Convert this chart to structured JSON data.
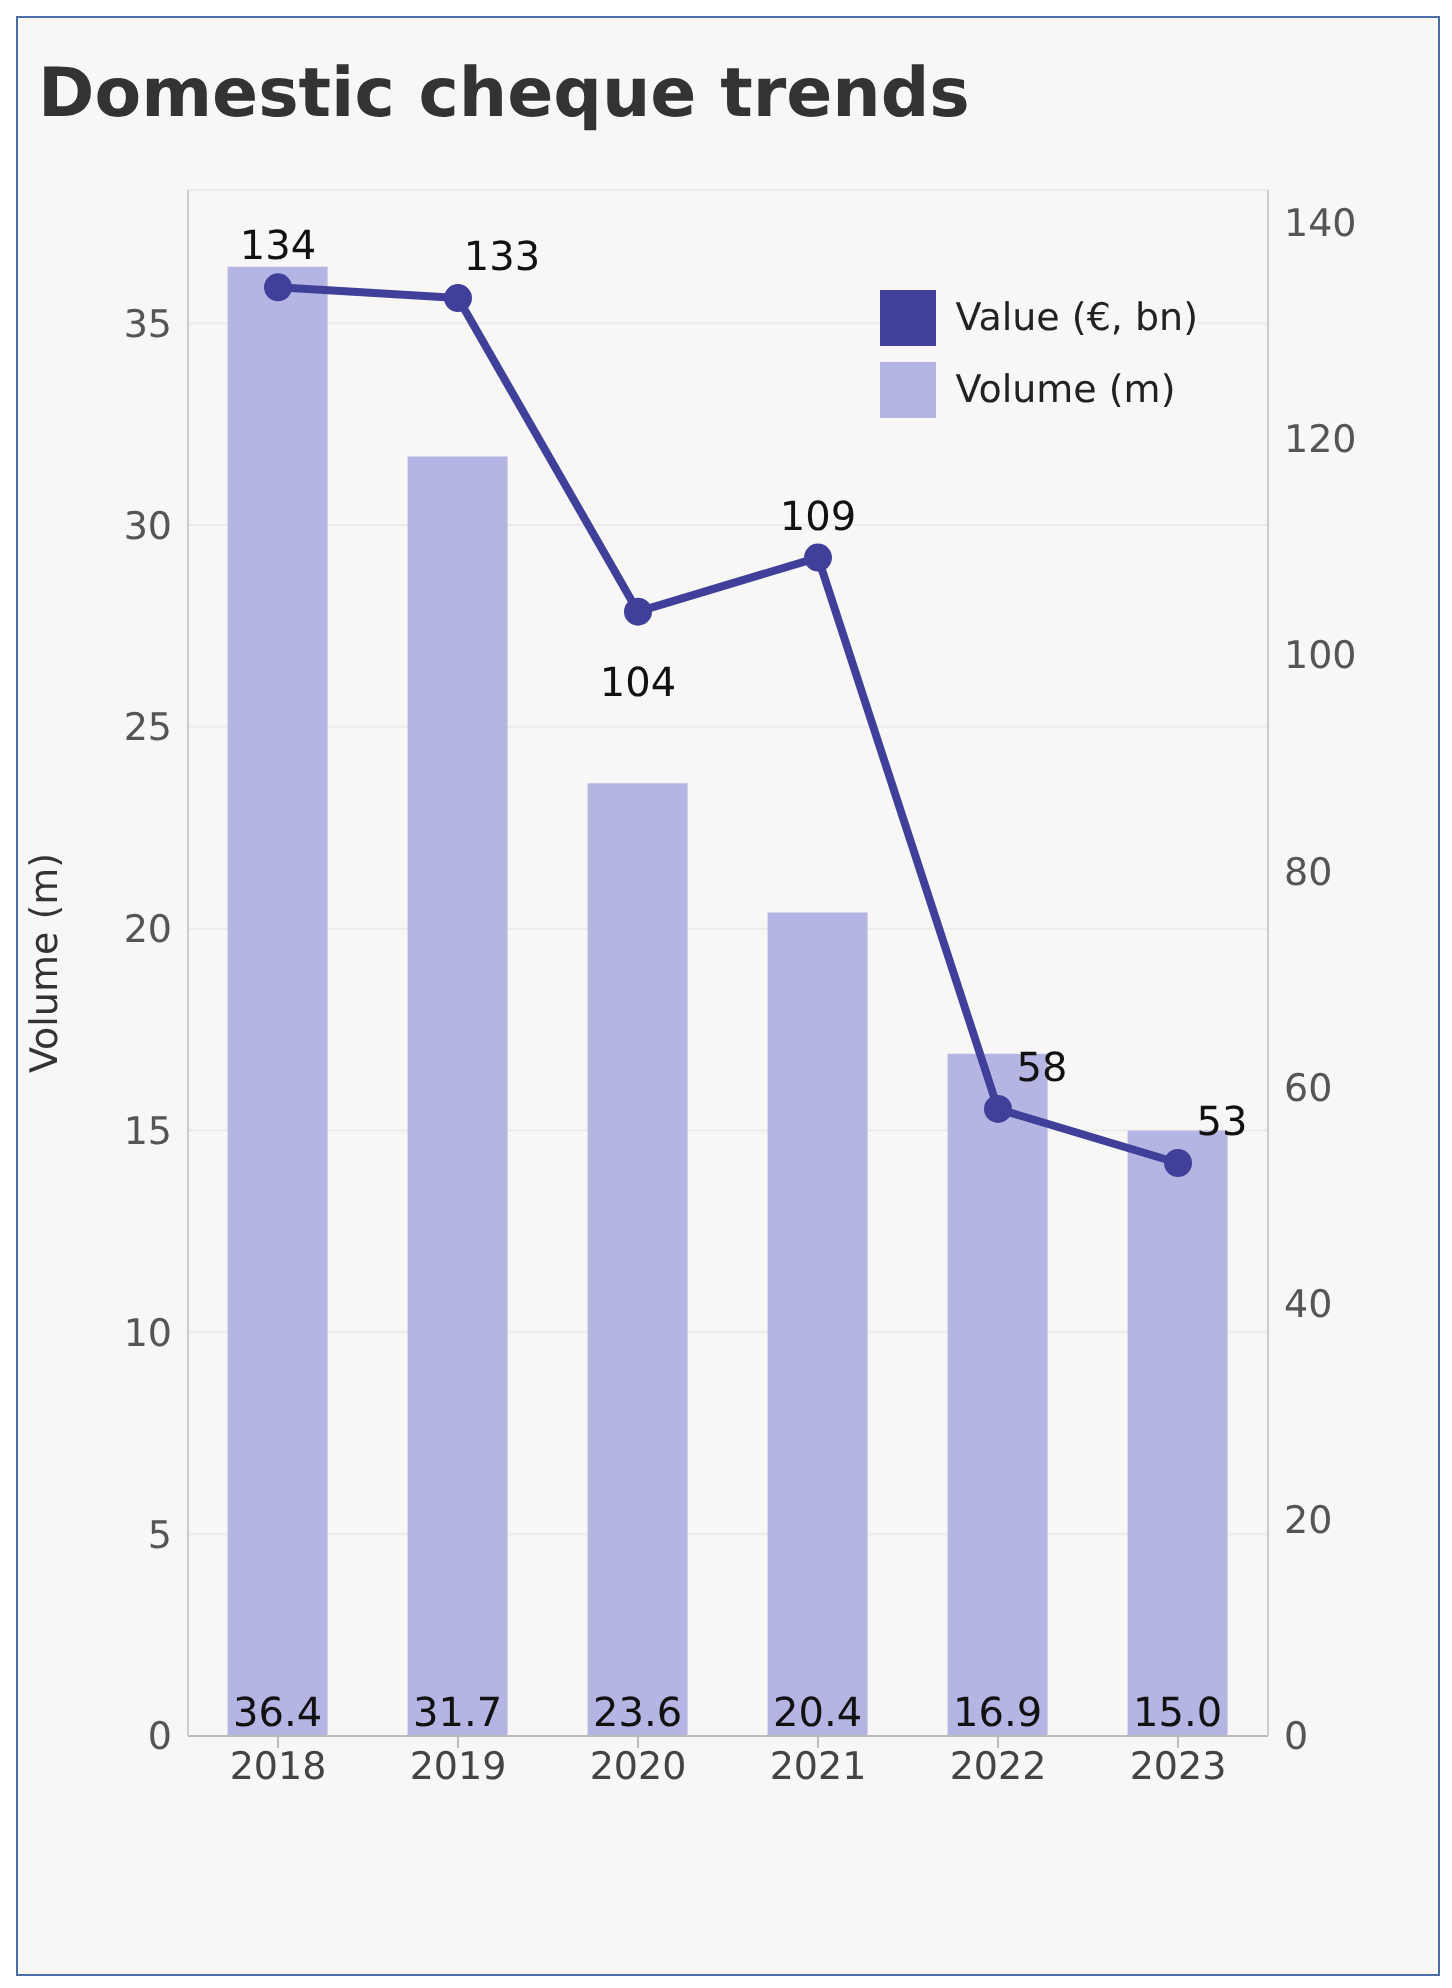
{
  "chart_data": {
    "type": "bar",
    "title": "Domestic cheque trends",
    "categories": [
      "2018",
      "2019",
      "2020",
      "2021",
      "2022",
      "2023"
    ],
    "series": [
      {
        "name": "Value (€, bn)",
        "type": "line",
        "axis": "y2",
        "color": "#40409a",
        "values": [
          134,
          133,
          104,
          109,
          58,
          53
        ]
      },
      {
        "name": "Volume (m)",
        "color": "#b5b5e4",
        "values": [
          36.4,
          31.7,
          23.6,
          20.4,
          16.9,
          15.0
        ],
        "value_labels": [
          "36.4",
          "31.7",
          "23.6",
          "20.4",
          "16.9",
          "15.0"
        ]
      }
    ],
    "ylabel": "Volume (m)",
    "ylim": [
      0,
      38.3
    ],
    "yticks": [
      0,
      5,
      10,
      15,
      20,
      25,
      30,
      35
    ],
    "y2lim": [
      0,
      143
    ],
    "y2ticks": [
      0,
      20,
      40,
      60,
      80,
      100,
      120,
      140
    ],
    "grid": "y",
    "legend": "top right",
    "marker": "circle",
    "data_labels": true
  }
}
